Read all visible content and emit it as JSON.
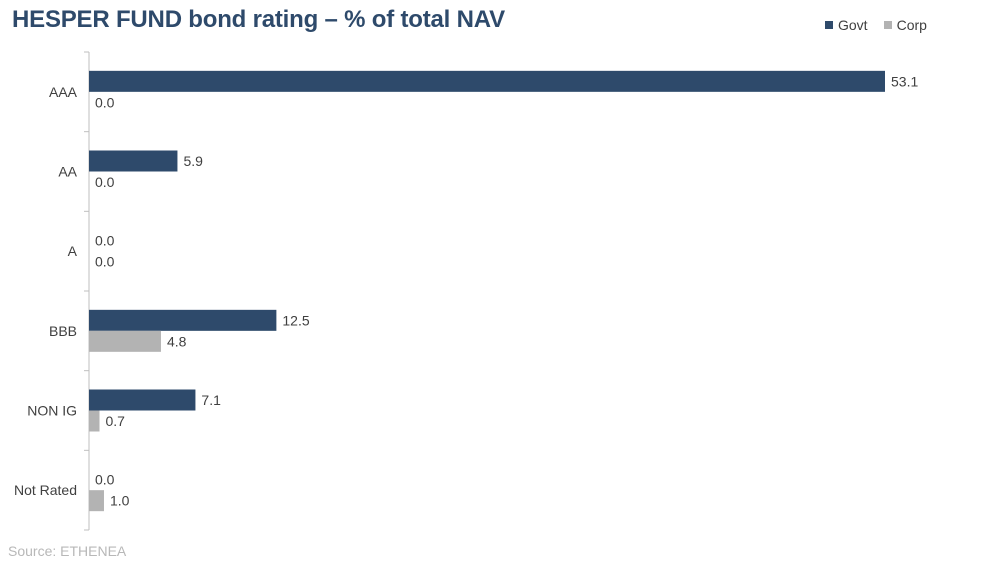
{
  "chart_data": {
    "type": "bar",
    "orientation": "horizontal",
    "title": "HESPER FUND bond rating – % of total NAV",
    "categories": [
      "AAA",
      "AA",
      "A",
      "BBB",
      "NON IG",
      "Not Rated"
    ],
    "series": [
      {
        "name": "Govt",
        "color": "#2e4a6b",
        "values": [
          53.1,
          5.9,
          0.0,
          12.5,
          7.1,
          0.0
        ]
      },
      {
        "name": "Corp",
        "color": "#b3b3b3",
        "values": [
          0.0,
          0.0,
          0.0,
          4.8,
          0.7,
          1.0
        ]
      }
    ],
    "xlim": [
      0,
      53.1
    ],
    "grid": false,
    "legend_position": "top-right",
    "source": "Source: ETHENEA"
  }
}
